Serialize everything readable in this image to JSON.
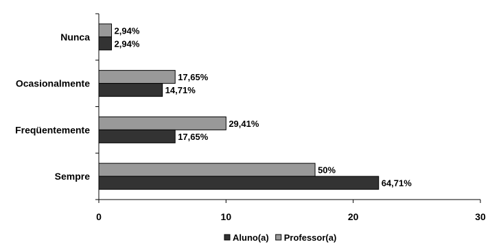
{
  "chart_data": {
    "type": "bar",
    "orientation": "horizontal",
    "categories": [
      "Nunca",
      "Ocasionalmente",
      "Freqüentemente",
      "Sempre"
    ],
    "series": [
      {
        "name": "Aluno(a)",
        "color": "#333333",
        "values": [
          1,
          5,
          6,
          22
        ],
        "labels": [
          "2,94%",
          "14,71%",
          "17,65%",
          "64,71%"
        ]
      },
      {
        "name": "Professor(a)",
        "color": "#999999",
        "values": [
          1,
          6,
          10,
          17
        ],
        "labels": [
          "2,94%",
          "17,65%",
          "29,41%",
          "50%"
        ]
      }
    ],
    "xlim": [
      0,
      30
    ],
    "xticks": [
      0,
      10,
      20,
      30
    ],
    "xtick_labels": [
      "0",
      "10",
      "20",
      "30"
    ],
    "title": "",
    "xlabel": "",
    "ylabel": "",
    "grid": false,
    "legend_position": "bottom"
  }
}
